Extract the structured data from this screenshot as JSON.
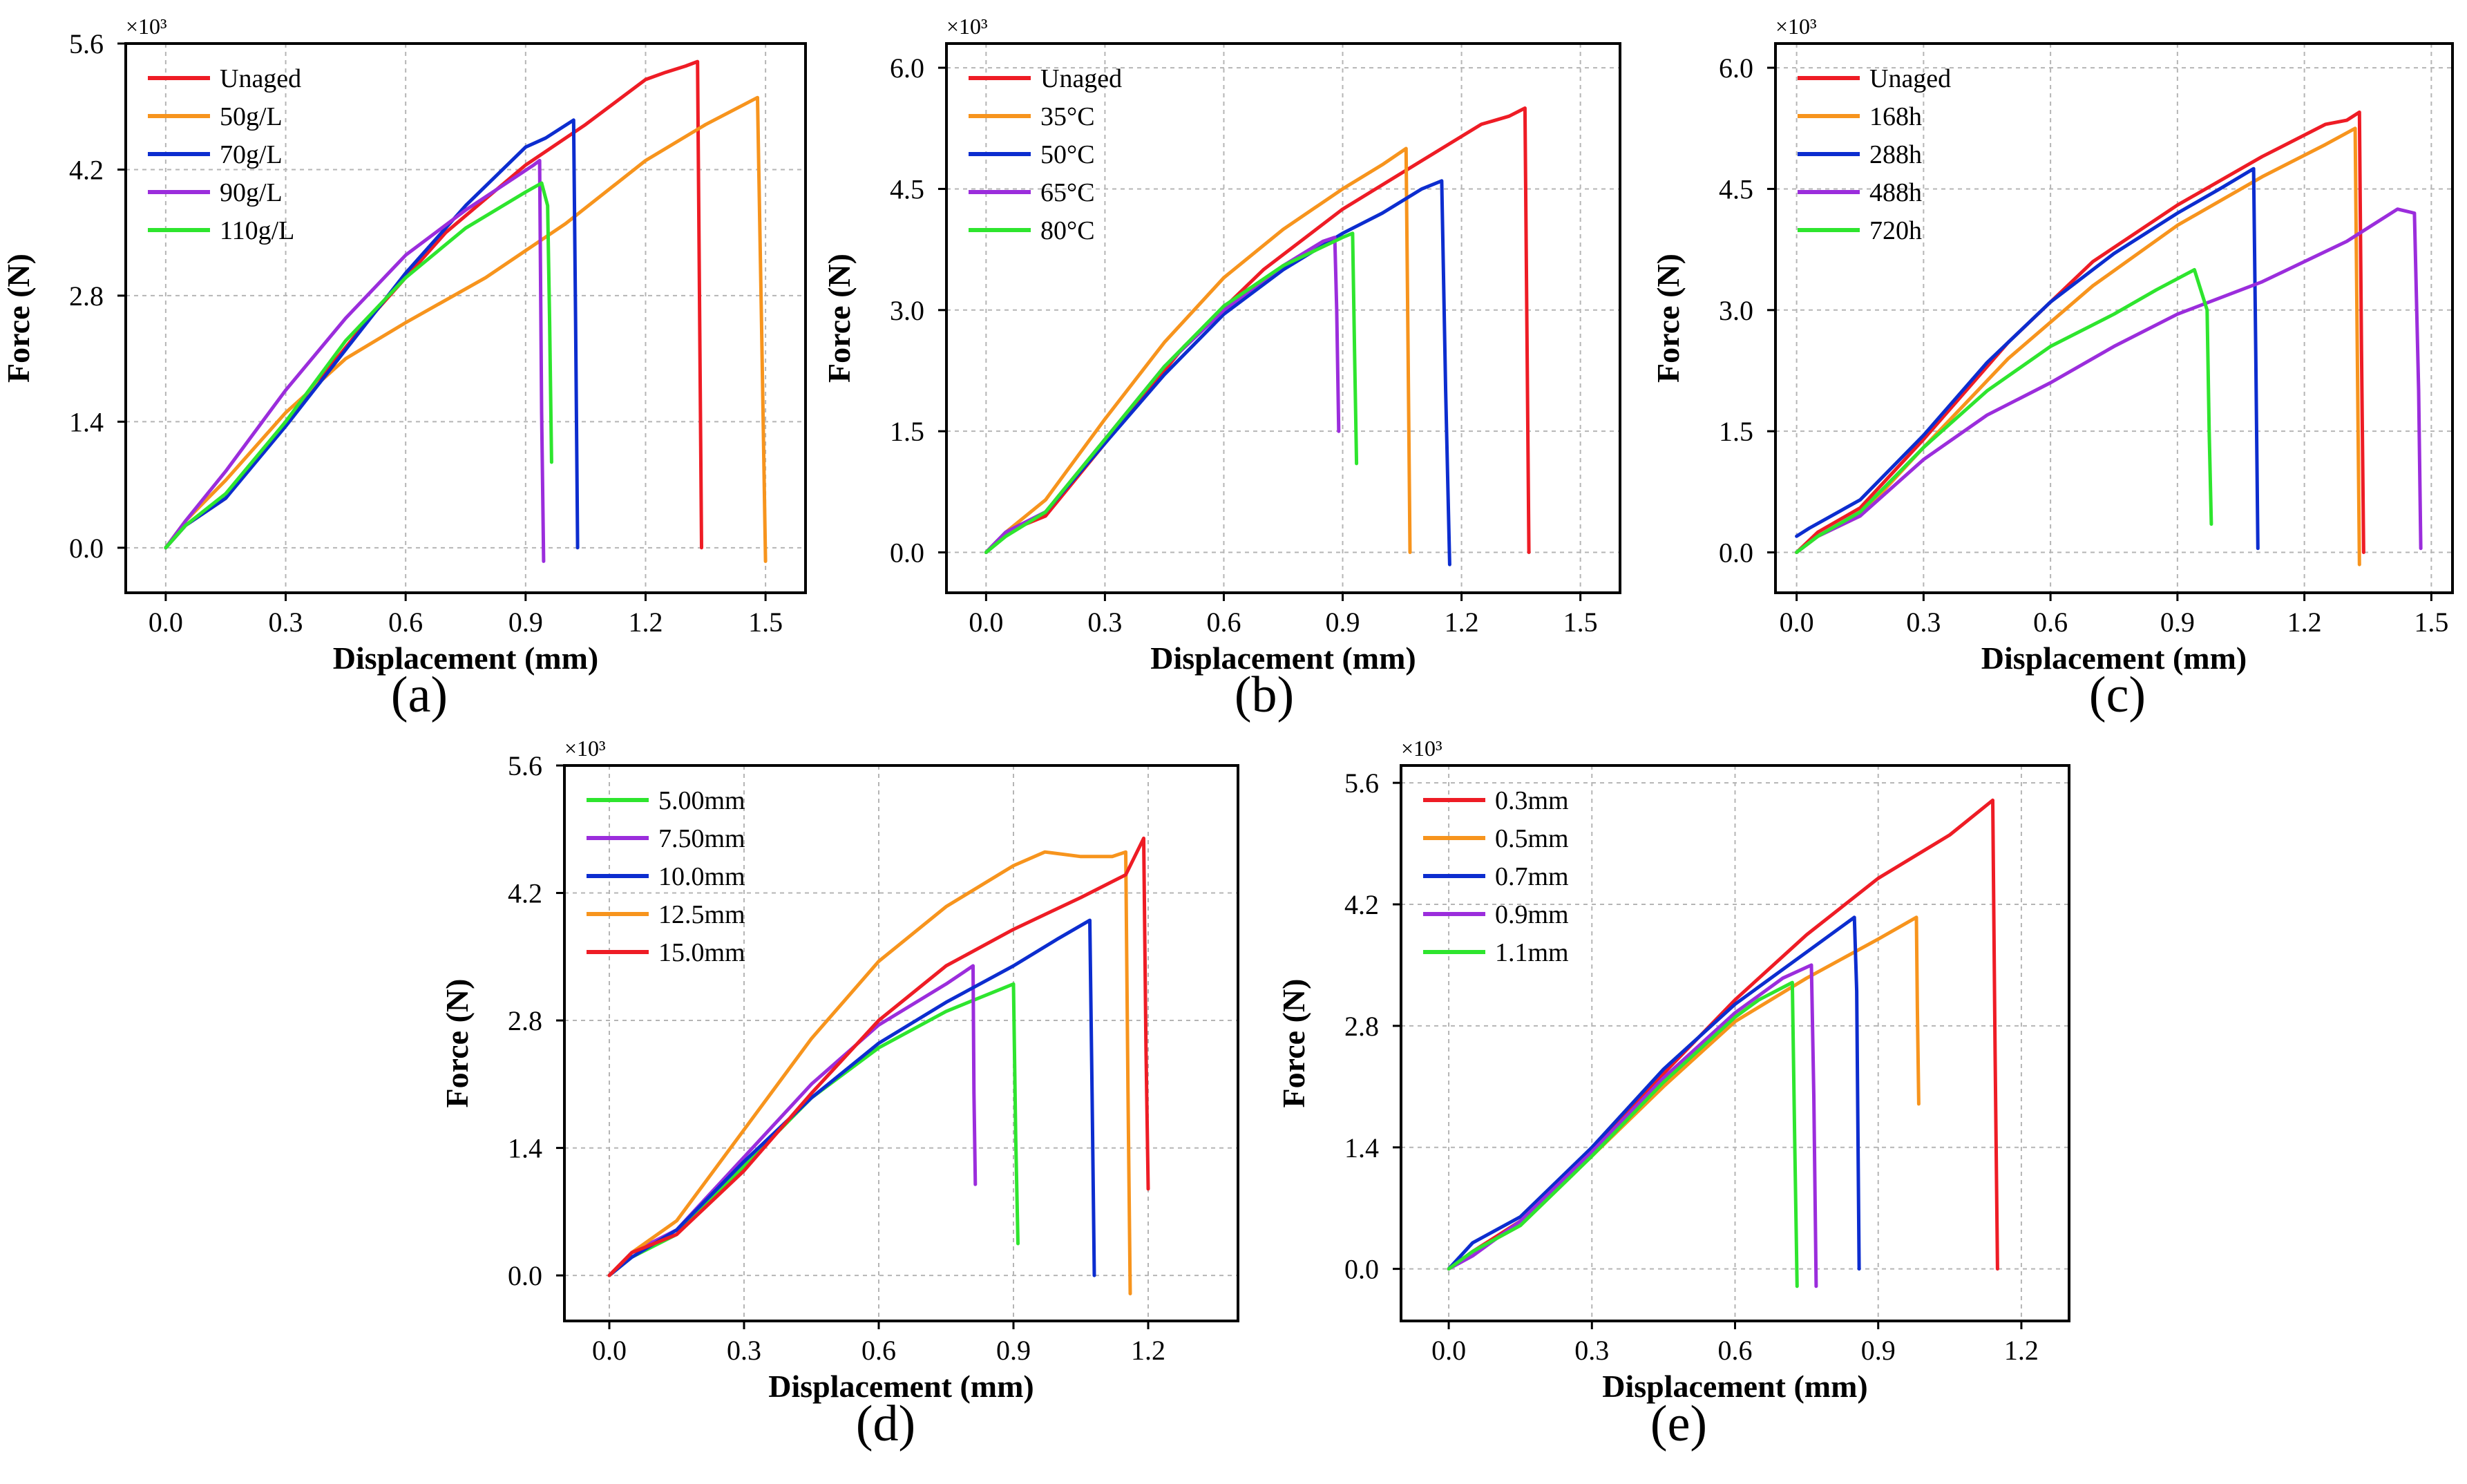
{
  "chart_data": [
    {
      "panel": "(a)",
      "type": "line",
      "xlabel": "Displacement (mm)",
      "ylabel": "Force (N)",
      "y_multiplier": "×10³",
      "xlim": [
        -0.1,
        1.6
      ],
      "ylim": [
        -0.5,
        5.6
      ],
      "xticks": [
        "0.0",
        "0.3",
        "0.6",
        "0.9",
        "1.2",
        "1.5"
      ],
      "xtick_values": [
        0,
        0.3,
        0.6,
        0.9,
        1.2,
        1.5
      ],
      "yticks": [
        "0.0",
        "1.4",
        "2.8",
        "4.2",
        "5.6"
      ],
      "ytick_values": [
        0,
        1.4,
        2.8,
        4.2,
        5.6
      ],
      "grid": true,
      "legend_position": "top-left",
      "series": [
        {
          "name": "Unaged",
          "color": "#ee1c25",
          "x": [
            0,
            0.05,
            0.15,
            0.3,
            0.5,
            0.7,
            0.9,
            1.05,
            1.2,
            1.25,
            1.3,
            1.33,
            1.34
          ],
          "y": [
            0,
            0.25,
            0.55,
            1.4,
            2.5,
            3.5,
            4.25,
            4.7,
            5.2,
            5.28,
            5.35,
            5.4,
            0
          ]
        },
        {
          "name": "50g/L",
          "color": "#f7941d",
          "x": [
            0,
            0.05,
            0.15,
            0.3,
            0.45,
            0.6,
            0.8,
            1.0,
            1.2,
            1.35,
            1.48,
            1.49,
            1.5
          ],
          "y": [
            0,
            0.3,
            0.75,
            1.5,
            2.1,
            2.5,
            3.0,
            3.6,
            4.3,
            4.7,
            5.0,
            2.5,
            -0.15
          ]
        },
        {
          "name": "70g/L",
          "color": "#0c2dcf",
          "x": [
            0,
            0.05,
            0.15,
            0.3,
            0.45,
            0.6,
            0.75,
            0.9,
            0.95,
            1.02,
            1.025,
            1.03
          ],
          "y": [
            0,
            0.25,
            0.55,
            1.35,
            2.2,
            3.05,
            3.8,
            4.45,
            4.55,
            4.75,
            2.5,
            0
          ]
        },
        {
          "name": "90g/L",
          "color": "#9b2ddc",
          "x": [
            0,
            0.05,
            0.15,
            0.3,
            0.45,
            0.6,
            0.75,
            0.92,
            0.935,
            0.94,
            0.945
          ],
          "y": [
            0,
            0.3,
            0.85,
            1.75,
            2.55,
            3.25,
            3.75,
            4.25,
            4.3,
            1.5,
            -0.15
          ]
        },
        {
          "name": "110g/L",
          "color": "#2ee52e",
          "x": [
            0,
            0.05,
            0.15,
            0.3,
            0.45,
            0.6,
            0.75,
            0.9,
            0.94,
            0.955,
            0.96,
            0.965
          ],
          "y": [
            0,
            0.25,
            0.6,
            1.4,
            2.3,
            3.0,
            3.55,
            3.95,
            4.05,
            3.8,
            2.5,
            0.95
          ]
        }
      ]
    },
    {
      "panel": "(b)",
      "type": "line",
      "xlabel": "Displacement (mm)",
      "ylabel": "Force (N)",
      "y_multiplier": "×10³",
      "xlim": [
        -0.1,
        1.6
      ],
      "ylim": [
        -0.5,
        6.3
      ],
      "xticks": [
        "0.0",
        "0.3",
        "0.6",
        "0.9",
        "1.2",
        "1.5"
      ],
      "xtick_values": [
        0,
        0.3,
        0.6,
        0.9,
        1.2,
        1.5
      ],
      "yticks": [
        "0.0",
        "1.5",
        "3.0",
        "4.5",
        "6.0"
      ],
      "ytick_values": [
        0,
        1.5,
        3.0,
        4.5,
        6.0
      ],
      "grid": true,
      "legend_position": "top-left",
      "series": [
        {
          "name": "Unaged",
          "color": "#ee1c25",
          "x": [
            0,
            0.05,
            0.15,
            0.3,
            0.5,
            0.7,
            0.9,
            1.1,
            1.25,
            1.32,
            1.36,
            1.365,
            1.37
          ],
          "y": [
            0,
            0.25,
            0.45,
            1.35,
            2.55,
            3.5,
            4.25,
            4.85,
            5.3,
            5.4,
            5.5,
            2.8,
            0
          ]
        },
        {
          "name": "35°C",
          "color": "#f7941d",
          "x": [
            0,
            0.05,
            0.15,
            0.3,
            0.45,
            0.6,
            0.75,
            0.9,
            1.0,
            1.06,
            1.065,
            1.07
          ],
          "y": [
            0,
            0.25,
            0.65,
            1.65,
            2.6,
            3.4,
            4.0,
            4.5,
            4.8,
            5.0,
            2.5,
            0
          ]
        },
        {
          "name": "50°C",
          "color": "#0c2dcf",
          "x": [
            0,
            0.05,
            0.15,
            0.3,
            0.45,
            0.6,
            0.75,
            0.9,
            1.0,
            1.1,
            1.15,
            1.16,
            1.17
          ],
          "y": [
            0,
            0.25,
            0.5,
            1.35,
            2.2,
            2.95,
            3.5,
            3.95,
            4.2,
            4.5,
            4.6,
            2.0,
            -0.15
          ]
        },
        {
          "name": "65°C",
          "color": "#9b2ddc",
          "x": [
            0,
            0.05,
            0.15,
            0.3,
            0.45,
            0.6,
            0.75,
            0.85,
            0.88,
            0.885,
            0.89
          ],
          "y": [
            0,
            0.25,
            0.5,
            1.4,
            2.3,
            3.0,
            3.55,
            3.85,
            3.9,
            3.0,
            1.5
          ]
        },
        {
          "name": "80°C",
          "color": "#2ee52e",
          "x": [
            0,
            0.05,
            0.15,
            0.3,
            0.45,
            0.6,
            0.75,
            0.9,
            0.925,
            0.93,
            0.935
          ],
          "y": [
            0,
            0.2,
            0.5,
            1.4,
            2.3,
            3.05,
            3.55,
            3.9,
            3.95,
            2.5,
            1.1
          ]
        }
      ]
    },
    {
      "panel": "(c)",
      "type": "line",
      "xlabel": "Displacement (mm)",
      "ylabel": "Force (N)",
      "y_multiplier": "×10³",
      "xlim": [
        -0.05,
        1.55
      ],
      "ylim": [
        -0.5,
        6.3
      ],
      "xticks": [
        "0.0",
        "0.3",
        "0.6",
        "0.9",
        "1.2",
        "1.5"
      ],
      "xtick_values": [
        0,
        0.3,
        0.6,
        0.9,
        1.2,
        1.5
      ],
      "yticks": [
        "0.0",
        "1.5",
        "3.0",
        "4.5",
        "6.0"
      ],
      "ytick_values": [
        0,
        1.5,
        3.0,
        4.5,
        6.0
      ],
      "grid": true,
      "legend_position": "top-left",
      "series": [
        {
          "name": "Unaged",
          "color": "#ee1c25",
          "x": [
            0,
            0.05,
            0.15,
            0.3,
            0.5,
            0.7,
            0.9,
            1.1,
            1.25,
            1.3,
            1.33,
            1.335,
            1.34
          ],
          "y": [
            0,
            0.25,
            0.55,
            1.4,
            2.6,
            3.6,
            4.3,
            4.9,
            5.3,
            5.35,
            5.45,
            2.5,
            0
          ]
        },
        {
          "name": "168h",
          "color": "#f7941d",
          "x": [
            0,
            0.05,
            0.15,
            0.3,
            0.5,
            0.7,
            0.9,
            1.1,
            1.25,
            1.32,
            1.325,
            1.33
          ],
          "y": [
            0,
            0.2,
            0.45,
            1.3,
            2.4,
            3.3,
            4.05,
            4.65,
            5.05,
            5.25,
            2.5,
            -0.15
          ]
        },
        {
          "name": "288h",
          "color": "#0c2dcf",
          "x": [
            0,
            0.03,
            0.15,
            0.3,
            0.45,
            0.6,
            0.75,
            0.9,
            1.0,
            1.08,
            1.085,
            1.09
          ],
          "y": [
            0.2,
            0.3,
            0.65,
            1.45,
            2.35,
            3.1,
            3.7,
            4.2,
            4.5,
            4.75,
            2.5,
            0.05
          ]
        },
        {
          "name": "488h",
          "color": "#9b2ddc",
          "x": [
            0,
            0.05,
            0.15,
            0.3,
            0.45,
            0.6,
            0.75,
            0.9,
            1.1,
            1.3,
            1.42,
            1.46,
            1.47,
            1.475
          ],
          "y": [
            0,
            0.2,
            0.45,
            1.15,
            1.7,
            2.1,
            2.55,
            2.95,
            3.35,
            3.85,
            4.25,
            4.2,
            2.0,
            0.05
          ]
        },
        {
          "name": "720h",
          "color": "#2ee52e",
          "x": [
            0,
            0.05,
            0.15,
            0.3,
            0.45,
            0.6,
            0.75,
            0.85,
            0.94,
            0.97,
            0.975,
            0.98
          ],
          "y": [
            0,
            0.2,
            0.5,
            1.3,
            2.0,
            2.55,
            2.95,
            3.25,
            3.5,
            3.0,
            1.5,
            0.35
          ]
        }
      ]
    },
    {
      "panel": "(d)",
      "type": "line",
      "xlabel": "Displacement (mm)",
      "ylabel": "Force (N)",
      "y_multiplier": "×10³",
      "xlim": [
        -0.1,
        1.4
      ],
      "ylim": [
        -0.5,
        5.6
      ],
      "xticks": [
        "0.0",
        "0.3",
        "0.6",
        "0.9",
        "1.2"
      ],
      "xtick_values": [
        0,
        0.3,
        0.6,
        0.9,
        1.2
      ],
      "yticks": [
        "0.0",
        "1.4",
        "2.8",
        "4.2",
        "5.6"
      ],
      "ytick_values": [
        0,
        1.4,
        2.8,
        4.2,
        5.6
      ],
      "grid": true,
      "legend_position": "top-left",
      "series": [
        {
          "name": "5.00mm",
          "color": "#2ee52e",
          "x": [
            0,
            0.05,
            0.15,
            0.3,
            0.45,
            0.6,
            0.75,
            0.9,
            0.905,
            0.91
          ],
          "y": [
            0,
            0.2,
            0.45,
            1.2,
            1.95,
            2.5,
            2.9,
            3.2,
            1.5,
            0.35
          ]
        },
        {
          "name": "7.50mm",
          "color": "#9b2ddc",
          "x": [
            0,
            0.05,
            0.15,
            0.3,
            0.45,
            0.6,
            0.75,
            0.81,
            0.812,
            0.815
          ],
          "y": [
            0,
            0.25,
            0.5,
            1.3,
            2.1,
            2.75,
            3.2,
            3.4,
            2.0,
            1.0
          ]
        },
        {
          "name": "10.0mm",
          "color": "#0c2dcf",
          "x": [
            0,
            0.05,
            0.15,
            0.3,
            0.45,
            0.6,
            0.75,
            0.9,
            1.0,
            1.07,
            1.075,
            1.08
          ],
          "y": [
            0,
            0.2,
            0.5,
            1.25,
            1.95,
            2.55,
            3.0,
            3.4,
            3.7,
            3.9,
            2.0,
            0
          ]
        },
        {
          "name": "12.5mm",
          "color": "#f7941d",
          "x": [
            0,
            0.05,
            0.15,
            0.3,
            0.45,
            0.6,
            0.75,
            0.9,
            0.97,
            1.05,
            1.12,
            1.15,
            1.155,
            1.16
          ],
          "y": [
            0,
            0.25,
            0.6,
            1.6,
            2.6,
            3.45,
            4.05,
            4.5,
            4.65,
            4.6,
            4.6,
            4.65,
            2.0,
            -0.2
          ]
        },
        {
          "name": "15.0mm",
          "color": "#ee1c25",
          "x": [
            0,
            0.05,
            0.15,
            0.3,
            0.45,
            0.6,
            0.75,
            0.9,
            1.05,
            1.15,
            1.19,
            1.195,
            1.2
          ],
          "y": [
            0,
            0.25,
            0.45,
            1.15,
            2.0,
            2.8,
            3.4,
            3.8,
            4.15,
            4.4,
            4.8,
            2.5,
            0.95
          ]
        }
      ]
    },
    {
      "panel": "(e)",
      "type": "line",
      "xlabel": "Displacement (mm)",
      "ylabel": "Force (N)",
      "y_multiplier": "×10³",
      "xlim": [
        -0.1,
        1.3
      ],
      "ylim": [
        -0.6,
        5.8
      ],
      "xticks": [
        "0.0",
        "0.3",
        "0.6",
        "0.9",
        "1.2"
      ],
      "xtick_values": [
        0,
        0.3,
        0.6,
        0.9,
        1.2
      ],
      "yticks": [
        "0.0",
        "1.4",
        "2.8",
        "4.2",
        "5.6"
      ],
      "ytick_values": [
        0,
        1.4,
        2.8,
        4.2,
        5.6
      ],
      "grid": true,
      "legend_position": "top-left",
      "series": [
        {
          "name": "0.3mm",
          "color": "#ee1c25",
          "x": [
            0,
            0.05,
            0.15,
            0.3,
            0.45,
            0.6,
            0.75,
            0.9,
            1.05,
            1.14,
            1.145,
            1.15
          ],
          "y": [
            0,
            0.2,
            0.55,
            1.35,
            2.25,
            3.1,
            3.85,
            4.5,
            5.0,
            5.4,
            2.5,
            0
          ]
        },
        {
          "name": "0.5mm",
          "color": "#f7941d",
          "x": [
            0,
            0.05,
            0.15,
            0.3,
            0.45,
            0.6,
            0.75,
            0.9,
            0.98,
            0.982,
            0.985
          ],
          "y": [
            0,
            0.2,
            0.5,
            1.3,
            2.1,
            2.85,
            3.35,
            3.8,
            4.05,
            3.0,
            1.9
          ]
        },
        {
          "name": "0.7mm",
          "color": "#0c2dcf",
          "x": [
            0,
            0.05,
            0.15,
            0.3,
            0.45,
            0.6,
            0.75,
            0.85,
            0.855,
            0.86
          ],
          "y": [
            0,
            0.3,
            0.6,
            1.4,
            2.3,
            3.05,
            3.65,
            4.05,
            3.2,
            0
          ]
        },
        {
          "name": "0.9mm",
          "color": "#9b2ddc",
          "x": [
            0,
            0.05,
            0.15,
            0.3,
            0.45,
            0.6,
            0.7,
            0.76,
            0.765,
            0.77
          ],
          "y": [
            0,
            0.15,
            0.55,
            1.35,
            2.2,
            2.95,
            3.35,
            3.5,
            2.0,
            -0.2
          ]
        },
        {
          "name": "1.1mm",
          "color": "#2ee52e",
          "x": [
            0,
            0.05,
            0.15,
            0.3,
            0.45,
            0.6,
            0.65,
            0.72,
            0.725,
            0.73
          ],
          "y": [
            0,
            0.2,
            0.5,
            1.3,
            2.15,
            2.9,
            3.1,
            3.3,
            1.5,
            -0.2
          ]
        }
      ]
    }
  ]
}
